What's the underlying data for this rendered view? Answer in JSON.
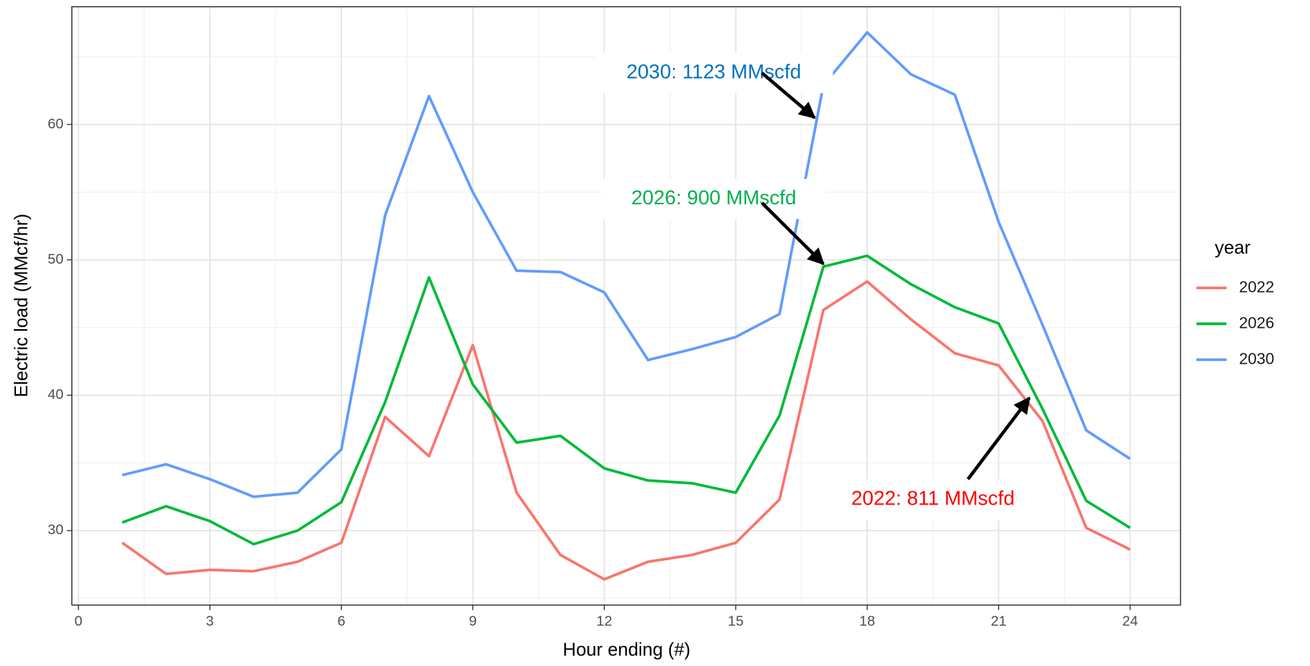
{
  "chart_data": {
    "type": "line",
    "x_label": "Hour ending (#)",
    "y_label": "Electric load (MMcf/hr)",
    "legend_title": "year",
    "x": [
      1,
      2,
      3,
      4,
      5,
      6,
      7,
      8,
      9,
      10,
      11,
      12,
      13,
      14,
      15,
      16,
      17,
      18,
      19,
      20,
      21,
      22,
      23,
      24
    ],
    "series": [
      {
        "name": "2022",
        "color": "#F8766D",
        "values": [
          29.1,
          26.8,
          27.1,
          27.0,
          27.7,
          29.1,
          38.4,
          35.5,
          43.7,
          32.8,
          28.2,
          26.4,
          27.7,
          28.2,
          29.1,
          32.3,
          46.3,
          48.4,
          45.6,
          43.1,
          42.2,
          38.1,
          30.2,
          28.6
        ]
      },
      {
        "name": "2026",
        "color": "#00BA38",
        "values": [
          30.6,
          31.8,
          30.7,
          29.0,
          30.0,
          32.1,
          39.5,
          48.7,
          40.8,
          36.5,
          37.0,
          34.6,
          33.7,
          33.5,
          32.8,
          38.5,
          49.5,
          50.3,
          48.2,
          46.5,
          45.3,
          39.0,
          32.2,
          30.2
        ]
      },
      {
        "name": "2030",
        "color": "#619CFF",
        "values": [
          34.1,
          34.9,
          33.8,
          32.5,
          32.8,
          36.0,
          53.3,
          62.1,
          55.0,
          49.2,
          49.1,
          47.6,
          42.6,
          43.4,
          44.3,
          46.0,
          62.9,
          66.8,
          63.7,
          62.2,
          52.8,
          45.2,
          37.4,
          35.3
        ]
      }
    ],
    "annotations": [
      {
        "text": "2030: 1123 MMscfd",
        "color": "#0070C0"
      },
      {
        "text": "2026: 900 MMscfd",
        "color": "#00B050"
      },
      {
        "text": "2022: 811 MMscfd",
        "color": "#FF0000"
      }
    ],
    "xlim": [
      -0.15,
      25.15
    ],
    "ylim": [
      24.5,
      68.7
    ],
    "xticks": [
      0,
      3,
      6,
      9,
      12,
      15,
      18,
      21,
      24
    ],
    "yticks": [
      30,
      40,
      50,
      60
    ],
    "grid": true,
    "legend_position": "right"
  }
}
